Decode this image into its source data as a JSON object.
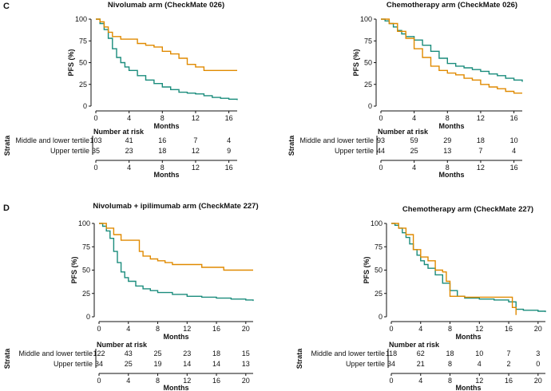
{
  "colors": {
    "middle_lower": "#1a8c7c",
    "upper": "#e08a00",
    "axis": "#111111"
  },
  "panel_labels": [
    "C",
    "D"
  ],
  "strata_label": "Strata",
  "number_at_risk_label": "Number at risk",
  "chart_data": [
    {
      "type": "line",
      "title": "Nivolumab arm (CheckMate 026)",
      "xlabel": "Months",
      "ylabel": "PFS (%)",
      "xlim": [
        0,
        17
      ],
      "ylim": [
        0,
        100
      ],
      "xticks": [
        0,
        4,
        8,
        12,
        16
      ],
      "yticks": [
        0,
        25,
        50,
        75,
        100
      ],
      "series": [
        {
          "name": "Middle and lower tertile",
          "color": "#1a8c7c",
          "x": [
            0,
            0.5,
            1,
            1.5,
            2,
            2.5,
            3,
            3.5,
            4,
            5,
            6,
            7,
            8,
            9,
            10,
            11,
            12,
            13,
            14,
            15,
            16,
            17
          ],
          "y": [
            100,
            95,
            88,
            78,
            66,
            56,
            50,
            45,
            41,
            35,
            30,
            26,
            22,
            19,
            16,
            15,
            14,
            12,
            10,
            9,
            8,
            7
          ]
        },
        {
          "name": "Upper tertile",
          "color": "#e08a00",
          "x": [
            0,
            0.5,
            1,
            1.5,
            2,
            3,
            4,
            5,
            6,
            7,
            8,
            9,
            10,
            11,
            12,
            13,
            17
          ],
          "y": [
            100,
            97,
            91,
            85,
            80,
            77,
            77,
            72,
            70,
            68,
            63,
            60,
            55,
            48,
            45,
            41,
            41
          ]
        }
      ],
      "risk_table": {
        "times": [
          0,
          4,
          8,
          12,
          16
        ],
        "rows": [
          {
            "label": "Middle and lower tertile",
            "values": [
              "103",
              "41",
              "16",
              "7",
              "4"
            ]
          },
          {
            "label": "Upper tertile",
            "values": [
              "35",
              "23",
              "18",
              "12",
              "9"
            ]
          }
        ]
      }
    },
    {
      "type": "line",
      "title": "Chemotherapy arm (CheckMate 026)",
      "xlabel": "Months",
      "ylabel": "PFS (%)",
      "xlim": [
        0,
        17
      ],
      "ylim": [
        0,
        100
      ],
      "xticks": [
        0,
        4,
        8,
        12,
        16
      ],
      "yticks": [
        0,
        25,
        50,
        75,
        100
      ],
      "series": [
        {
          "name": "Middle and lower tertile",
          "color": "#1a8c7c",
          "x": [
            0,
            0.5,
            1,
            1.5,
            2,
            2.5,
            3,
            4,
            5,
            6,
            7,
            8,
            9,
            10,
            11,
            12,
            13,
            14,
            15,
            16,
            17
          ],
          "y": [
            100,
            98,
            95,
            91,
            87,
            83,
            80,
            76,
            70,
            63,
            55,
            49,
            46,
            44,
            42,
            40,
            37,
            35,
            32,
            30,
            28
          ]
        },
        {
          "name": "Upper tertile",
          "color": "#e08a00",
          "x": [
            0,
            1,
            2,
            3,
            4,
            5,
            6,
            7,
            8,
            9,
            10,
            11,
            12,
            13,
            14,
            15,
            16,
            17
          ],
          "y": [
            100,
            95,
            86,
            78,
            66,
            56,
            46,
            41,
            38,
            36,
            32,
            30,
            25,
            22,
            20,
            17,
            15,
            15
          ]
        }
      ],
      "risk_table": {
        "times": [
          0,
          4,
          8,
          12,
          16
        ],
        "rows": [
          {
            "label": "Middle and lower tertile",
            "values": [
              "93",
              "59",
              "29",
              "18",
              "10"
            ]
          },
          {
            "label": "Upper tertile",
            "values": [
              "44",
              "25",
              "13",
              "7",
              "4"
            ]
          }
        ]
      }
    },
    {
      "type": "line",
      "title": "Nivolumab + ipilimumab arm (CheckMate 227)",
      "xlabel": "Months",
      "ylabel": "PFS (%)",
      "xlim": [
        0,
        21
      ],
      "ylim": [
        0,
        100
      ],
      "xticks": [
        0,
        4,
        8,
        12,
        16,
        20
      ],
      "yticks": [
        0,
        25,
        50,
        75,
        100
      ],
      "series": [
        {
          "name": "Middle and lower tertile",
          "color": "#1a8c7c",
          "x": [
            0,
            0.5,
            1,
            1.5,
            2,
            2.5,
            3,
            3.5,
            4,
            5,
            6,
            7,
            8,
            10,
            12,
            14,
            16,
            18,
            20,
            21
          ],
          "y": [
            100,
            97,
            92,
            84,
            70,
            58,
            48,
            42,
            38,
            33,
            30,
            28,
            26,
            24,
            22,
            21,
            20,
            19,
            18,
            17
          ]
        },
        {
          "name": "Upper tertile",
          "color": "#e08a00",
          "x": [
            0,
            1,
            2,
            3,
            4,
            5,
            5.5,
            6,
            7,
            8,
            9,
            10,
            12,
            14,
            16,
            17,
            21
          ],
          "y": [
            100,
            95,
            88,
            82,
            82,
            82,
            70,
            65,
            62,
            60,
            58,
            56,
            56,
            53,
            53,
            50,
            50
          ]
        }
      ],
      "risk_table": {
        "times": [
          0,
          4,
          8,
          12,
          16,
          20
        ],
        "rows": [
          {
            "label": "Middle and lower tertile",
            "values": [
              "122",
              "43",
              "25",
              "23",
              "18",
              "15"
            ]
          },
          {
            "label": "Upper tertile",
            "values": [
              "34",
              "25",
              "19",
              "14",
              "14",
              "13"
            ]
          }
        ]
      }
    },
    {
      "type": "line",
      "title": "Chemotherapy arm (CheckMate 227)",
      "xlabel": "Months",
      "ylabel": "PFS (%)",
      "xlim": [
        0,
        21
      ],
      "ylim": [
        0,
        100
      ],
      "xticks": [
        0,
        4,
        8,
        12,
        16,
        20
      ],
      "yticks": [
        0,
        25,
        50,
        75,
        100
      ],
      "series": [
        {
          "name": "Middle and lower tertile",
          "color": "#1a8c7c",
          "x": [
            0,
            0.5,
            1,
            1.5,
            2,
            2.5,
            3,
            3.5,
            4,
            4.5,
            5,
            6,
            7,
            8,
            9,
            10,
            12,
            14,
            16,
            17,
            18,
            20,
            21
          ],
          "y": [
            100,
            98,
            95,
            90,
            85,
            78,
            72,
            66,
            60,
            56,
            52,
            45,
            36,
            28,
            22,
            20,
            19,
            18,
            16,
            8,
            7,
            6,
            5
          ]
        },
        {
          "name": "Upper tertile",
          "color": "#e08a00",
          "x": [
            0,
            1,
            2,
            3,
            4,
            5,
            6,
            7,
            7.5,
            8,
            10,
            12,
            14,
            16,
            16.5,
            17
          ],
          "y": [
            100,
            95,
            88,
            72,
            64,
            60,
            50,
            48,
            38,
            22,
            21,
            21,
            21,
            21,
            10,
            2
          ]
        }
      ],
      "risk_table": {
        "times": [
          0,
          4,
          8,
          12,
          16,
          20
        ],
        "rows": [
          {
            "label": "Middle and lower tertile",
            "values": [
              "118",
              "62",
              "18",
              "10",
              "7",
              "3"
            ]
          },
          {
            "label": "Upper tertile",
            "values": [
              "34",
              "21",
              "8",
              "4",
              "2",
              "0"
            ]
          }
        ]
      }
    }
  ]
}
